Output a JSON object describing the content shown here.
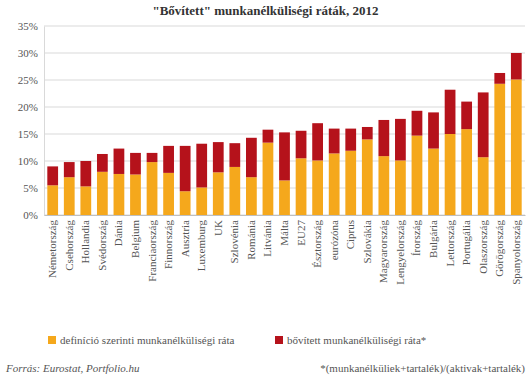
{
  "chart_data": {
    "type": "bar",
    "stacked": true,
    "grid": true,
    "legend": "bottom",
    "title": "\"Bővített\" munkanélküliségi ráták, 2012",
    "categories": [
      "Németország",
      "Csehország",
      "Hollandia",
      "Svédország",
      "Dánia",
      "Belgium",
      "Franciaország",
      "Finnország",
      "Ausztria",
      "Luxemburg",
      "UK",
      "Szlovénia",
      "Románia",
      "Litvánia",
      "Málta",
      "EU27",
      "Észtország",
      "eurózóna",
      "Ciprus",
      "Szlovákia",
      "Magyarország",
      "Lengyelország",
      "Írország",
      "Bulgária",
      "Lettország",
      "Portugália",
      "Olaszország",
      "Görögország",
      "Spanyolország"
    ],
    "series": [
      {
        "name": "definíció szerinti munkanélküliségi ráta",
        "color": "#f5a81c",
        "values": [
          5.5,
          7.0,
          5.3,
          8.0,
          7.6,
          7.5,
          9.8,
          7.8,
          4.4,
          5.1,
          7.9,
          8.9,
          7.0,
          13.4,
          6.4,
          10.5,
          10.1,
          11.4,
          11.9,
          14.0,
          10.9,
          10.1,
          14.7,
          12.3,
          15.0,
          15.9,
          10.7,
          24.3,
          25.1
        ]
      },
      {
        "name": "bővített munkanélküliségi ráta*",
        "color": "#b5121b",
        "values": [
          3.5,
          2.8,
          4.7,
          3.3,
          4.7,
          4.0,
          1.7,
          5.0,
          8.4,
          8.1,
          5.6,
          4.4,
          7.3,
          2.4,
          8.9,
          5.1,
          6.9,
          4.6,
          4.1,
          2.3,
          6.7,
          7.7,
          4.6,
          6.7,
          8.2,
          5.1,
          12.0,
          2.0,
          4.9
        ]
      }
    ],
    "ylim": [
      0,
      35
    ],
    "yticks": [
      {
        "value": 0,
        "label": "0%"
      },
      {
        "value": 5,
        "label": "5%"
      },
      {
        "value": 10,
        "label": "10%"
      },
      {
        "value": 15,
        "label": "15%"
      },
      {
        "value": 20,
        "label": "20%"
      },
      {
        "value": 25,
        "label": "25%"
      },
      {
        "value": 30,
        "label": "30%"
      },
      {
        "value": 35,
        "label": "35%"
      }
    ],
    "annotations": [
      "Forrás: Eurostat, Portfolio.hu",
      "*(munkanélküliek+tartalék)/(aktivak+tartalék)"
    ]
  }
}
